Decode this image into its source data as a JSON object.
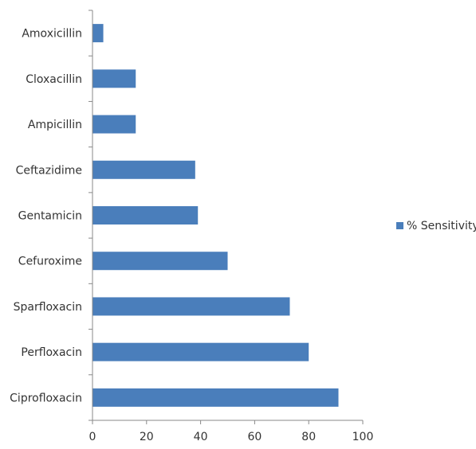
{
  "chart_data": {
    "type": "bar",
    "orientation": "horizontal",
    "categories": [
      "Amoxicillin",
      "Cloxacillin",
      "Ampicillin",
      "Ceftazidime",
      "Gentamicin",
      "Cefuroxime",
      "Sparfloxacin",
      "Perfloxacin",
      "Ciprofloxacin"
    ],
    "series": [
      {
        "name": "% Sensitivity",
        "color": "#4a7ebb",
        "values": [
          4,
          16,
          16,
          38,
          39,
          50,
          73,
          80,
          91
        ]
      }
    ],
    "xlim": [
      0,
      100
    ],
    "xticks": [
      0,
      20,
      40,
      60,
      80,
      100
    ],
    "title": "",
    "xlabel": "",
    "ylabel": "",
    "grid": false,
    "legend": {
      "position": "right"
    }
  }
}
